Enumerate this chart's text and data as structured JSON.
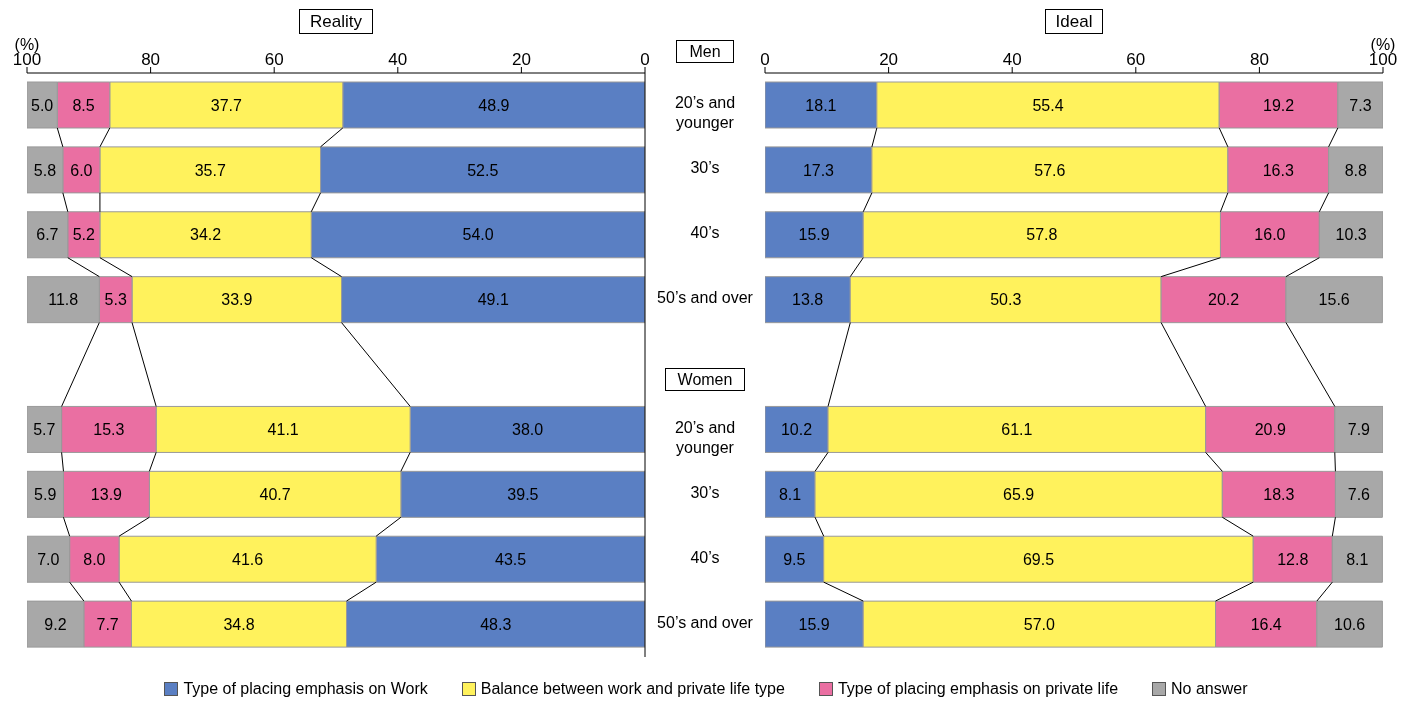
{
  "chart_data": [
    {
      "type": "bar",
      "title": "Reality",
      "xlabel": "(%)",
      "orientation": "horizontal",
      "stacked": true,
      "legend": "bottom",
      "annotations": [
        "Men",
        "Women"
      ],
      "categories": [
        "20’s and younger",
        "30’s",
        "40’s",
        "50’s and over",
        null,
        "20’s and younger",
        "30’s",
        "40’s",
        "50’s and over"
      ],
      "xlim": [
        100,
        0
      ],
      "xticks": [
        100,
        80,
        60,
        40,
        20,
        0
      ],
      "series": [
        {
          "name": "Type of placing emphasis on Work",
          "color": "#5a7fc3",
          "values": [
            48.9,
            52.5,
            54.0,
            49.1,
            null,
            38.0,
            39.5,
            43.5,
            48.3
          ],
          "value_labels": [
            "48.9",
            "52.5",
            "54.0",
            "49.1",
            null,
            "38.0",
            "39.5",
            "43.5",
            "48.3"
          ]
        },
        {
          "name": "Balance between work and private life type",
          "color": "#fff25c",
          "values": [
            37.7,
            35.7,
            34.2,
            33.9,
            null,
            41.1,
            40.7,
            41.6,
            34.8
          ],
          "value_labels": [
            "37.7",
            "35.7",
            "34.2",
            "33.9",
            null,
            "41.1",
            "40.7",
            "41.6",
            "34.8"
          ]
        },
        {
          "name": "Type of placing emphasis on private life",
          "color": "#ea6fa2",
          "values": [
            8.5,
            6.0,
            5.2,
            5.3,
            null,
            15.3,
            13.9,
            8.0,
            7.7
          ],
          "value_labels": [
            "8.5",
            "6.0",
            "5.2",
            "5.3",
            null,
            "15.3",
            "13.9",
            "8.0",
            "7.7"
          ]
        },
        {
          "name": "No answer",
          "color": "#a8a8a8",
          "values": [
            5.0,
            5.8,
            6.7,
            11.8,
            null,
            5.7,
            5.9,
            7.0,
            9.2
          ],
          "value_labels": [
            "5.0",
            "5.8",
            "6.7",
            "11.8",
            null,
            "5.7",
            "5.9",
            "7.0",
            "9.2"
          ]
        }
      ]
    },
    {
      "type": "bar",
      "title": "Ideal",
      "xlabel": "(%)",
      "orientation": "horizontal",
      "stacked": true,
      "tick_labels": "x",
      "categories": [
        null,
        null,
        null,
        null,
        null,
        null,
        null,
        null,
        null
      ],
      "xlim": [
        0,
        100
      ],
      "xticks": [
        0,
        20,
        40,
        60,
        80,
        100
      ],
      "series": [
        {
          "color": "#5a7fc3",
          "values": [
            18.1,
            17.3,
            15.9,
            13.8,
            null,
            10.2,
            8.1,
            9.5,
            15.9
          ],
          "value_labels": [
            "18.1",
            "17.3",
            "15.9",
            "13.8",
            null,
            "10.2",
            "8.1",
            "9.5",
            "15.9"
          ]
        },
        {
          "color": "#fff25c",
          "values": [
            55.4,
            57.6,
            57.8,
            50.3,
            null,
            61.1,
            65.9,
            69.5,
            57.0
          ],
          "value_labels": [
            "55.4",
            "57.6",
            "57.8",
            "50.3",
            null,
            "61.1",
            "65.9",
            "69.5",
            "57.0"
          ]
        },
        {
          "color": "#ea6fa2",
          "values": [
            19.2,
            16.3,
            16.0,
            20.2,
            null,
            20.9,
            18.3,
            12.8,
            16.4
          ],
          "value_labels": [
            "19.2",
            "16.3",
            "16.0",
            "20.2",
            null,
            "20.9",
            "18.3",
            "12.8",
            "16.4"
          ]
        },
        {
          "color": "#a8a8a8",
          "values": [
            7.3,
            8.8,
            10.3,
            15.6,
            null,
            7.9,
            7.6,
            8.1,
            10.6
          ],
          "value_labels": [
            "7.3",
            "8.8",
            "10.3",
            "15.6",
            null,
            "7.9",
            "7.6",
            "8.1",
            "10.6"
          ]
        }
      ]
    }
  ]
}
